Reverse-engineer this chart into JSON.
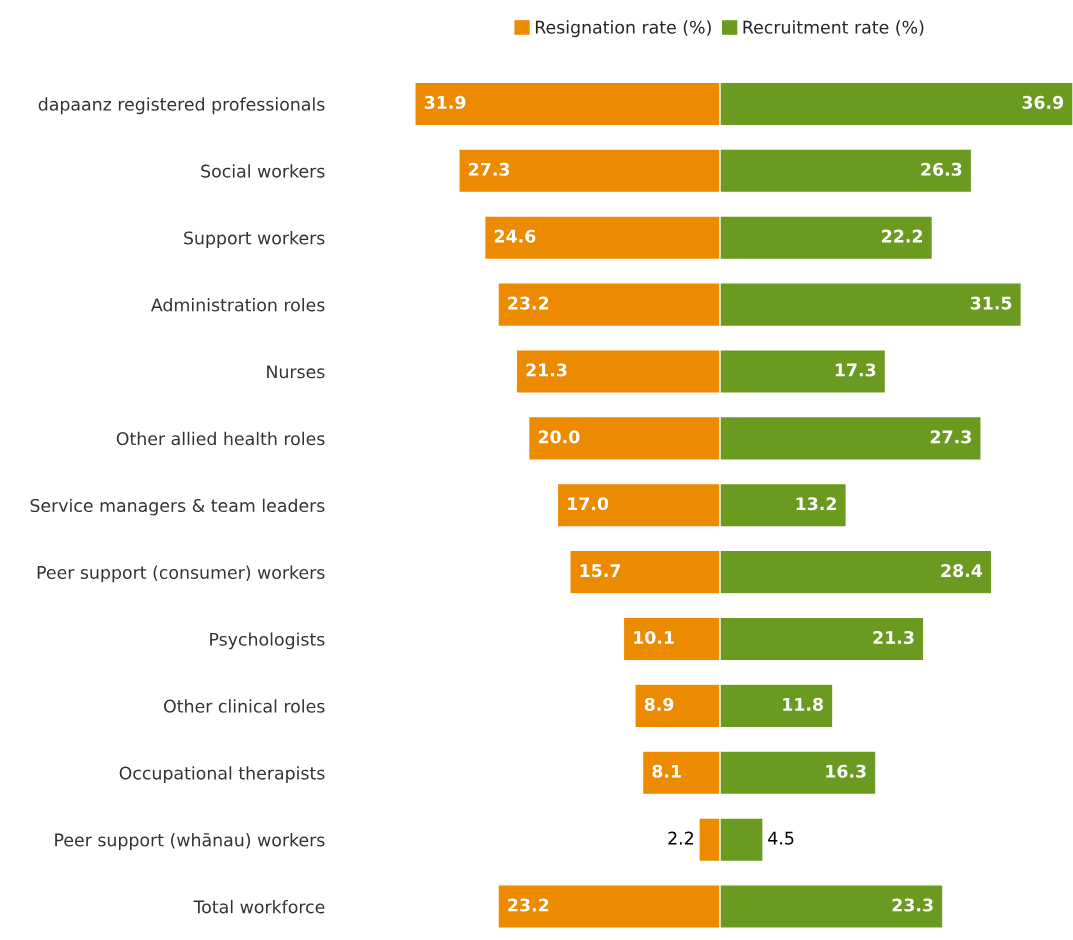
{
  "chart_data": [
    {
      "type": "bar",
      "orientation": "horizontal",
      "categories": [
        "dapaanz registered professionals",
        "Social workers",
        "Support workers",
        "Administration roles",
        "Nurses",
        "Other allied health roles",
        "Service managers & team leaders",
        "Peer support (consumer) workers",
        "Psychologists",
        "Other clinical roles",
        "Occupational therapists",
        "Peer support (whānau) workers",
        "Total workforce"
      ],
      "series": [
        {
          "name": "Resignation rate (%)",
          "color": "#ed8b00",
          "values": [
            31.9,
            27.3,
            24.6,
            23.2,
            21.3,
            20.0,
            17.0,
            15.7,
            10.1,
            8.9,
            8.1,
            2.2,
            23.2
          ],
          "value_labels": [
            "31.9",
            "27.3",
            "24.6",
            "23.2",
            "21.3",
            "20.0",
            "17.0",
            "15.7",
            "10.1",
            "8.9",
            "8.1",
            "2.2",
            "23.2"
          ]
        }
      ],
      "tick_labels": "y",
      "legend": "top"
    },
    {
      "type": "bar",
      "orientation": "horizontal",
      "categories": [
        null,
        null,
        null,
        null,
        null,
        null,
        null,
        null,
        null,
        null,
        null,
        null,
        null
      ],
      "series": [
        {
          "name": "Recruitment rate (%)",
          "color": "#6a9a1f",
          "values": [
            36.9,
            26.3,
            22.2,
            31.5,
            17.3,
            27.3,
            13.2,
            28.4,
            21.3,
            11.8,
            16.3,
            4.5,
            23.3
          ],
          "value_labels": [
            "36.9",
            "26.3",
            "22.2",
            "31.5",
            "17.3",
            "27.3",
            "13.2",
            "28.4",
            "21.3",
            "11.8",
            "16.3",
            "4.5",
            "23.3"
          ]
        }
      ],
      "tick_labels": false,
      "legend": "top"
    }
  ]
}
